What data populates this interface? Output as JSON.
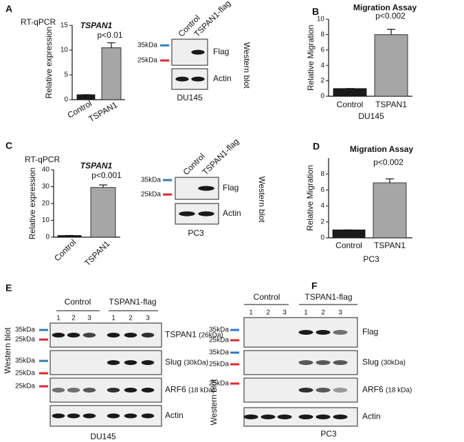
{
  "letters": [
    "A",
    "B",
    "C",
    "D",
    "E",
    "F"
  ],
  "chart_data": [
    {
      "type": "bar",
      "header": "RT-qPCR",
      "title": "TSPAN1",
      "ylabel": "Relative expression",
      "categories": [
        "Control",
        "TSPAN1"
      ],
      "values": [
        1,
        10.5
      ],
      "errors": [
        0,
        1
      ],
      "colors": [
        "#1a1a1a",
        "#a6a6a6"
      ],
      "ylim": [
        0,
        15
      ],
      "yticks": [
        0,
        5,
        10,
        15
      ],
      "annotation": "p<0.01"
    },
    {
      "type": "bar",
      "title": "Migration Assay",
      "ylabel": "Relative Migration",
      "xlabel": "DU145",
      "categories": [
        "Control",
        "TSPAN1"
      ],
      "values": [
        1,
        8
      ],
      "errors": [
        0,
        0.7
      ],
      "colors": [
        "#1a1a1a",
        "#a6a6a6"
      ],
      "ylim": [
        0,
        10
      ],
      "yticks": [
        0,
        2,
        4,
        6,
        8,
        10
      ],
      "annotation": "p<0.002"
    },
    {
      "type": "bar",
      "header": "RT-qPCR",
      "title": "TSPAN1",
      "ylabel": "Relative expression",
      "categories": [
        "Control",
        "TSPAN1"
      ],
      "values": [
        1,
        29.5
      ],
      "errors": [
        0,
        1.5
      ],
      "colors": [
        "#1a1a1a",
        "#a6a6a6"
      ],
      "ylim": [
        0,
        40
      ],
      "yticks": [
        0,
        10,
        20,
        30,
        40
      ],
      "annotation": "p<0.001"
    },
    {
      "type": "bar",
      "title": "Migration Assay",
      "ylabel": "Relative Migration",
      "xlabel": "PC3",
      "categories": [
        "Control",
        "TSPAN1"
      ],
      "values": [
        1,
        6.9
      ],
      "errors": [
        0,
        0.5
      ],
      "colors": [
        "#1a1a1a",
        "#a6a6a6"
      ],
      "ylim": [
        0,
        10
      ],
      "yticks": [
        0,
        2,
        4,
        6,
        8
      ],
      "annotation": "p<0.002"
    }
  ],
  "blots": [
    {
      "lanes": [
        "Control",
        "TSPAN1-flag"
      ],
      "markers": [
        {
          "label": "35kDa",
          "color": "#2b7bbf"
        },
        {
          "label": "25kDa",
          "color": "#e3242b"
        }
      ],
      "rows": [
        {
          "name": "Flag"
        },
        {
          "name": "Actin"
        }
      ],
      "side_label": "Western blot",
      "cell_line": "DU145"
    },
    {
      "lanes": [
        "Control",
        "TSPAN1-flag"
      ],
      "markers": [
        {
          "label": "35kDa",
          "color": "#2b7bbf"
        },
        {
          "label": "25kDa",
          "color": "#e3242b"
        }
      ],
      "rows": [
        {
          "name": "Flag"
        },
        {
          "name": "Actin"
        }
      ],
      "side_label": "Western blot",
      "cell_line": "PC3"
    },
    {
      "groups": [
        "Control",
        "TSPAN1-flag"
      ],
      "lane_numbers": [
        "1",
        "2",
        "3",
        "1",
        "2",
        "3"
      ],
      "markers": [
        {
          "label": "35kDa",
          "color": "#2b7bbf"
        },
        {
          "label": "25kDa",
          "color": "#e3242b"
        },
        {
          "label": "35kDa",
          "color": "#2b7bbf"
        },
        {
          "label": "25kDa",
          "color": "#e3242b"
        },
        {
          "label": "25kDa",
          "color": "#e3242b"
        }
      ],
      "rows": [
        {
          "name": "TSPAN1",
          "size": "(26kDa)"
        },
        {
          "name": "Slug",
          "size": "(30kDa)"
        },
        {
          "name": "ARF6",
          "size": "(18 kDa)"
        },
        {
          "name": "Actin"
        }
      ],
      "side_label": "Western blot",
      "cell_line": "DU145"
    },
    {
      "groups": [
        "Control",
        "TSPAN1-flag"
      ],
      "lane_numbers": [
        "1",
        "2",
        "3",
        "1",
        "2",
        "3"
      ],
      "markers": [
        {
          "label": "35kDa",
          "color": "#2b7bbf"
        },
        {
          "label": "25kDa",
          "color": "#e3242b"
        },
        {
          "label": "35kDa",
          "color": "#2b7bbf"
        },
        {
          "label": "25kDa",
          "color": "#e3242b"
        },
        {
          "label": "25kDa",
          "color": "#e3242b"
        }
      ],
      "rows": [
        {
          "name": "Flag"
        },
        {
          "name": "Slug",
          "size": "(30kDa)"
        },
        {
          "name": "ARF6",
          "size": "(18 kDa)"
        },
        {
          "name": "Actin"
        }
      ],
      "side_label": "Western blot",
      "cell_line": "PC3"
    }
  ]
}
